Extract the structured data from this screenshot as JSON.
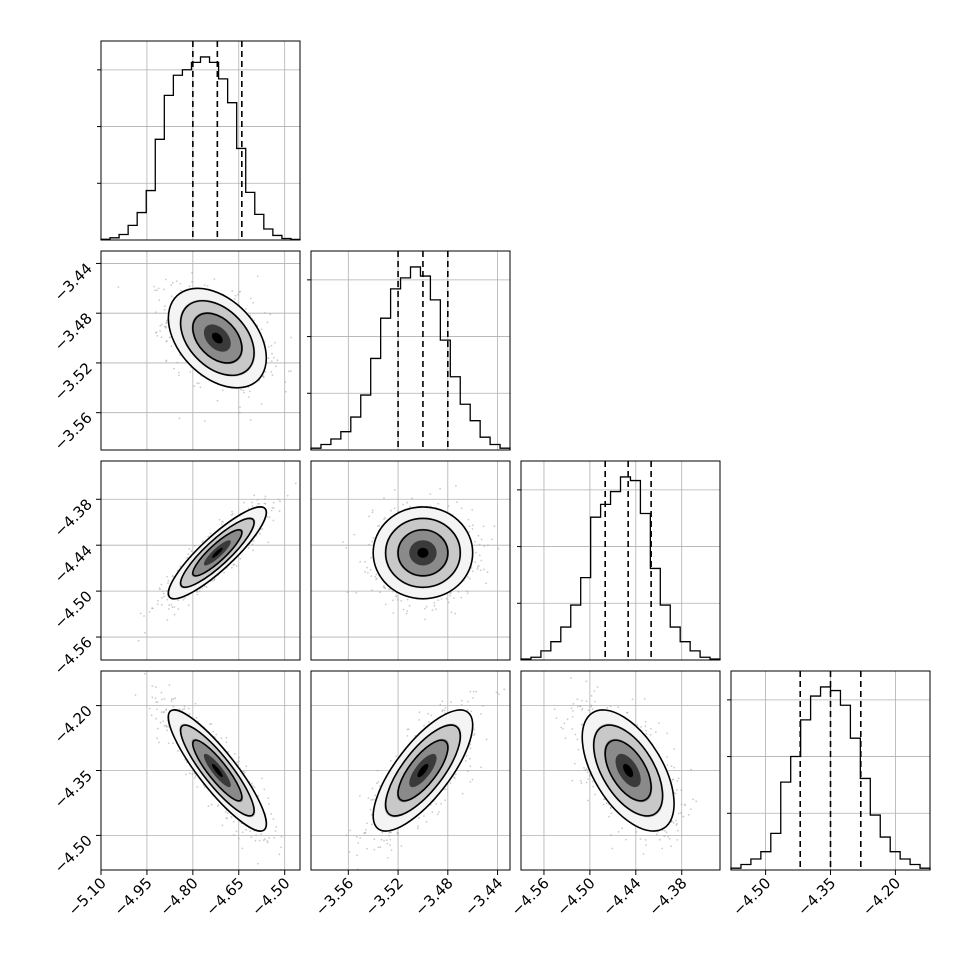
{
  "chart_data": {
    "type": "corner",
    "parameters": [
      {
        "index": 0,
        "hist": {
          "range": [
            -5.1,
            -4.45
          ],
          "peak_x": -4.72,
          "quantiles": [
            -4.8,
            -4.72,
            -4.64
          ],
          "counts": [
            0.004,
            0.012,
            0.03,
            0.08,
            0.15,
            0.27,
            0.55,
            0.79,
            0.9,
            0.93,
            0.97,
            1.0,
            0.97,
            0.88,
            0.75,
            0.5,
            0.26,
            0.14,
            0.06,
            0.025,
            0.008,
            0.003
          ],
          "ticks": [
            -5.1,
            -4.95,
            -4.8,
            -4.65,
            -4.5
          ]
        }
      },
      {
        "index": 1,
        "hist": {
          "range": [
            -3.59,
            -3.43
          ],
          "peak_x": -3.5,
          "quantiles": [
            -3.52,
            -3.5,
            -3.48
          ],
          "counts": [
            0.01,
            0.03,
            0.06,
            0.1,
            0.18,
            0.3,
            0.5,
            0.72,
            0.88,
            0.94,
            1.0,
            0.95,
            0.82,
            0.6,
            0.4,
            0.25,
            0.16,
            0.07,
            0.03,
            0.01
          ],
          "ticks": [
            -3.56,
            -3.52,
            -3.48,
            -3.44
          ]
        }
      },
      {
        "index": 2,
        "hist": {
          "range": [
            -4.59,
            -4.33
          ],
          "peak_x": -4.45,
          "quantiles": [
            -4.48,
            -4.45,
            -4.42
          ],
          "counts": [
            0.005,
            0.015,
            0.05,
            0.1,
            0.18,
            0.3,
            0.45,
            0.78,
            0.85,
            0.92,
            1.0,
            0.98,
            0.8,
            0.5,
            0.3,
            0.18,
            0.1,
            0.05,
            0.015,
            0.005
          ],
          "ticks": [
            -4.56,
            -4.5,
            -4.44,
            -4.38
          ]
        }
      },
      {
        "index": 3,
        "hist": {
          "range": [
            -4.58,
            -4.12
          ],
          "peak_x": -4.35,
          "quantiles": [
            -4.42,
            -4.35,
            -4.28
          ],
          "counts": [
            0.01,
            0.03,
            0.06,
            0.1,
            0.2,
            0.48,
            0.62,
            0.82,
            0.95,
            1.0,
            0.98,
            0.9,
            0.72,
            0.5,
            0.3,
            0.18,
            0.1,
            0.06,
            0.03,
            0.01
          ],
          "ticks": [
            -4.5,
            -4.35,
            -4.2
          ]
        }
      }
    ],
    "pairs": [
      {
        "row": 1,
        "col": 0,
        "corr": -0.4
      },
      {
        "row": 2,
        "col": 0,
        "corr": 0.88
      },
      {
        "row": 2,
        "col": 1,
        "corr": 0.0
      },
      {
        "row": 3,
        "col": 0,
        "corr": -0.88
      },
      {
        "row": 3,
        "col": 1,
        "corr": 0.75
      },
      {
        "row": 3,
        "col": 2,
        "corr": -0.55
      }
    ],
    "bottom_tick_labels": [
      [
        "−5.10",
        "−4.95",
        "−4.80",
        "−4.65",
        "−4.50"
      ],
      [
        "−3.56",
        "−3.52",
        "−3.48",
        "−3.44"
      ],
      [
        "−4.56",
        "−4.50",
        "−4.44",
        "−4.38"
      ],
      [
        "−4.50",
        "−4.35",
        "−4.20"
      ]
    ],
    "left_tick_labels": [
      null,
      [
        "−3.44",
        "−3.48",
        "−3.52",
        "−3.56"
      ],
      [
        "−4.38",
        "−4.44",
        "−4.50",
        "−4.56"
      ],
      [
        "−4.20",
        "−4.35",
        "−4.50"
      ]
    ],
    "grid": true,
    "quantile_style": "dashed",
    "colors": {
      "line": "#000000",
      "grid": "#b0b0b0",
      "scatter": "#9a9a9a"
    }
  }
}
